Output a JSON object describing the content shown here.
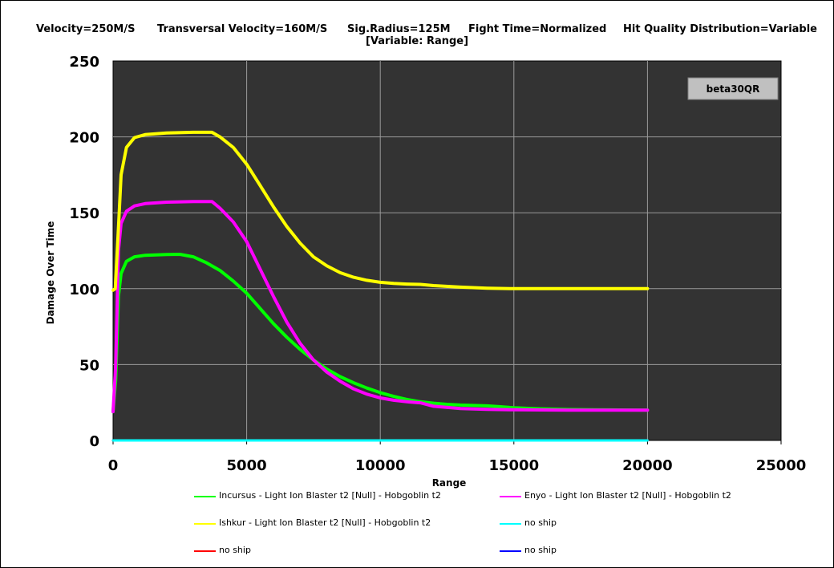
{
  "header": {
    "velocity": "Velocity=250M/S",
    "transversal": "Transversal Velocity=160M/S",
    "sig_radius": "Sig.Radius=125M",
    "fight_time": "Fight Time=Normalized",
    "hit_quality": "Hit Quality Distribution=Variable",
    "variable": "[Variable: Range]"
  },
  "chart_data": {
    "type": "line",
    "title": "",
    "xlabel": "Range",
    "ylabel": "Damage Over Time",
    "xlim": [
      0,
      25000
    ],
    "ylim": [
      0,
      250
    ],
    "x_ticks": [
      "0",
      "5000",
      "10000",
      "15000",
      "20000",
      "25000"
    ],
    "y_ticks": [
      "0",
      "50",
      "100",
      "150",
      "200",
      "250"
    ],
    "grid": true,
    "annotation": "beta30QR",
    "legend_position": "bottom",
    "series": [
      {
        "name": "Incursus - Light Ion Blaster t2 [Null] - Hobgoblin t2",
        "color": "#00ff00",
        "points": [
          [
            0,
            19
          ],
          [
            100,
            40
          ],
          [
            200,
            95
          ],
          [
            300,
            110
          ],
          [
            500,
            118
          ],
          [
            800,
            121
          ],
          [
            1200,
            122
          ],
          [
            2000,
            122.5
          ],
          [
            2500,
            122.6
          ],
          [
            3000,
            121
          ],
          [
            3500,
            117
          ],
          [
            4000,
            112
          ],
          [
            4500,
            105
          ],
          [
            5000,
            97
          ],
          [
            5500,
            87
          ],
          [
            6000,
            77
          ],
          [
            6500,
            68
          ],
          [
            7000,
            60
          ],
          [
            7500,
            53
          ],
          [
            8000,
            47
          ],
          [
            8500,
            42
          ],
          [
            9000,
            38
          ],
          [
            9500,
            34.5
          ],
          [
            10000,
            31.5
          ],
          [
            10500,
            29
          ],
          [
            11000,
            27
          ],
          [
            11500,
            25.5
          ],
          [
            12000,
            24.5
          ],
          [
            12500,
            23.8
          ],
          [
            13000,
            23.3
          ],
          [
            14000,
            22.8
          ],
          [
            14500,
            22.2
          ],
          [
            15000,
            21.5
          ],
          [
            16000,
            20.8
          ],
          [
            17000,
            20.4
          ],
          [
            18000,
            20.2
          ],
          [
            19000,
            20.1
          ],
          [
            20000,
            20
          ]
        ]
      },
      {
        "name": "Enyo - Light Ion Blaster t2 [Null] - Hobgoblin t2",
        "color": "#ff00ff",
        "points": [
          [
            0,
            19
          ],
          [
            100,
            50
          ],
          [
            200,
            125
          ],
          [
            300,
            143
          ],
          [
            500,
            151
          ],
          [
            800,
            154.5
          ],
          [
            1200,
            156
          ],
          [
            2000,
            157
          ],
          [
            3000,
            157.4
          ],
          [
            3700,
            157.4
          ],
          [
            4000,
            153
          ],
          [
            4500,
            144
          ],
          [
            5000,
            131
          ],
          [
            5500,
            113
          ],
          [
            6000,
            95
          ],
          [
            6500,
            78
          ],
          [
            7000,
            64
          ],
          [
            7500,
            53
          ],
          [
            8000,
            45
          ],
          [
            8500,
            39
          ],
          [
            9000,
            34
          ],
          [
            9500,
            30.5
          ],
          [
            10000,
            28
          ],
          [
            10500,
            26.5
          ],
          [
            11000,
            25.5
          ],
          [
            11500,
            24.8
          ],
          [
            12000,
            22.5
          ],
          [
            13000,
            21
          ],
          [
            14000,
            20.5
          ],
          [
            15000,
            20.2
          ],
          [
            17000,
            20
          ],
          [
            20000,
            20
          ]
        ]
      },
      {
        "name": "Ishkur - Light Ion Blaster t2 [Null] - Hobgoblin t2",
        "color": "#ffff00",
        "points": [
          [
            0,
            99
          ],
          [
            80,
            100
          ],
          [
            200,
            140
          ],
          [
            300,
            175
          ],
          [
            500,
            193
          ],
          [
            800,
            199.5
          ],
          [
            1200,
            201.5
          ],
          [
            2000,
            202.6
          ],
          [
            3000,
            203
          ],
          [
            3700,
            203
          ],
          [
            4000,
            200
          ],
          [
            4500,
            193
          ],
          [
            5000,
            182
          ],
          [
            5500,
            168
          ],
          [
            6000,
            154
          ],
          [
            6500,
            141
          ],
          [
            7000,
            130
          ],
          [
            7500,
            121
          ],
          [
            8000,
            115
          ],
          [
            8500,
            110.5
          ],
          [
            9000,
            107.5
          ],
          [
            9500,
            105.5
          ],
          [
            10000,
            104.2
          ],
          [
            10500,
            103.5
          ],
          [
            11000,
            103
          ],
          [
            11500,
            102.8
          ],
          [
            12000,
            102
          ],
          [
            13000,
            101
          ],
          [
            14000,
            100.3
          ],
          [
            15000,
            100
          ],
          [
            17000,
            100
          ],
          [
            20000,
            100
          ]
        ]
      },
      {
        "name": "no ship",
        "color": "#00ffff",
        "points": [
          [
            0,
            0
          ],
          [
            20000,
            0
          ]
        ]
      },
      {
        "name": "no ship",
        "color": "#ff0000",
        "points": [
          [
            0,
            0
          ],
          [
            20000,
            0
          ]
        ]
      },
      {
        "name": "no ship",
        "color": "#0000ff",
        "points": [
          [
            0,
            0
          ],
          [
            20000,
            0
          ]
        ]
      }
    ]
  }
}
